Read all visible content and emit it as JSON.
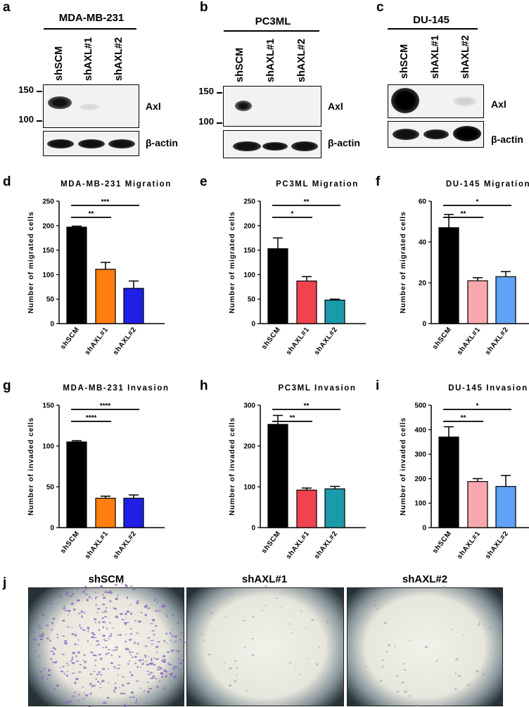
{
  "western_blots": [
    {
      "letter": "a",
      "title": "MDA-MB-231",
      "lanes": [
        "shSCM",
        "shAXL#1",
        "shAXL#2"
      ],
      "mw_markers": [
        "150",
        "100"
      ],
      "proteins": [
        "Axl",
        "β-actin"
      ]
    },
    {
      "letter": "b",
      "title": "PC3ML",
      "lanes": [
        "shSCM",
        "shAXL#1",
        "shAXL#2"
      ],
      "mw_markers": [
        "150",
        "100"
      ],
      "proteins": [
        "Axl",
        "β-actin"
      ]
    },
    {
      "letter": "c",
      "title": "DU-145",
      "lanes": [
        "shSCM",
        "shAXL#1",
        "shAXL#2"
      ],
      "mw_markers": [],
      "proteins": [
        "Axl",
        "β-actin"
      ]
    }
  ],
  "chart_data": [
    {
      "letter": "d",
      "type": "bar",
      "title": "MDA-MB-231 Migration",
      "ylabel": "Number of migrated cells",
      "categories": [
        "shSCM",
        "shAXL#1",
        "shAXL#2"
      ],
      "values": [
        197,
        111,
        72
      ],
      "errors": [
        2,
        14,
        15
      ],
      "colors": [
        "#000000",
        "#ff7f0e",
        "#1f1fe6"
      ],
      "ylim": [
        0,
        250
      ],
      "yticks": [
        0,
        50,
        100,
        150,
        200,
        250
      ],
      "significance": [
        {
          "from": 0,
          "to": 1,
          "label": "**"
        },
        {
          "from": 0,
          "to": 2,
          "label": "***"
        }
      ]
    },
    {
      "letter": "e",
      "type": "bar",
      "title": "PC3ML Migration",
      "ylabel": "Number of migrated cells",
      "categories": [
        "shSCM",
        "shAXL#1",
        "shAXL#2"
      ],
      "values": [
        153,
        87,
        48
      ],
      "errors": [
        22,
        9,
        2
      ],
      "colors": [
        "#000000",
        "#f0434f",
        "#1b9aaa"
      ],
      "ylim": [
        0,
        250
      ],
      "yticks": [
        0,
        50,
        100,
        150,
        200,
        250
      ],
      "significance": [
        {
          "from": 0,
          "to": 1,
          "label": "*"
        },
        {
          "from": 0,
          "to": 2,
          "label": "**"
        }
      ]
    },
    {
      "letter": "f",
      "type": "bar",
      "title": "DU-145 Migration",
      "ylabel": "Number of migrated cells",
      "categories": [
        "shSCM",
        "shAXL#1",
        "shAXL#2"
      ],
      "values": [
        47,
        21,
        23
      ],
      "errors": [
        6.5,
        1.5,
        2.5
      ],
      "colors": [
        "#000000",
        "#f7a8ad",
        "#5ea3f5"
      ],
      "ylim": [
        0,
        60
      ],
      "yticks": [
        0,
        20,
        40,
        60
      ],
      "significance": [
        {
          "from": 0,
          "to": 1,
          "label": "**"
        },
        {
          "from": 0,
          "to": 2,
          "label": "*"
        }
      ]
    },
    {
      "letter": "g",
      "type": "bar",
      "title": "MDA-MB-231 Invasion",
      "ylabel": "Number of invaded cells",
      "categories": [
        "shSCM",
        "shAXL#1",
        "shAXL#2"
      ],
      "values": [
        105,
        36,
        36
      ],
      "errors": [
        1.5,
        2.5,
        4
      ],
      "colors": [
        "#000000",
        "#ff7f0e",
        "#1f1fe6"
      ],
      "ylim": [
        0,
        150
      ],
      "yticks": [
        0,
        50,
        100,
        150
      ],
      "significance": [
        {
          "from": 0,
          "to": 1,
          "label": "****"
        },
        {
          "from": 0,
          "to": 2,
          "label": "****"
        }
      ]
    },
    {
      "letter": "h",
      "type": "bar",
      "title": "PC3ML Invasion",
      "ylabel": "Number of invaded cells",
      "categories": [
        "shSCM",
        "shAXL#1",
        "shAXL#2"
      ],
      "values": [
        253,
        92,
        95
      ],
      "errors": [
        22,
        5,
        6
      ],
      "colors": [
        "#000000",
        "#f0434f",
        "#1b9aaa"
      ],
      "ylim": [
        0,
        300
      ],
      "yticks": [
        0,
        100,
        200,
        300
      ],
      "significance": [
        {
          "from": 0,
          "to": 1,
          "label": "**"
        },
        {
          "from": 0,
          "to": 2,
          "label": "**"
        }
      ]
    },
    {
      "letter": "i",
      "type": "bar",
      "title": "DU-145 Invasion",
      "ylabel": "Number of invaded cells",
      "categories": [
        "shSCM",
        "shAXL#1",
        "shAXL#2"
      ],
      "values": [
        370,
        188,
        168
      ],
      "errors": [
        42,
        12,
        45
      ],
      "colors": [
        "#000000",
        "#f7a8ad",
        "#5ea3f5"
      ],
      "ylim": [
        0,
        500
      ],
      "yticks": [
        0,
        100,
        200,
        300,
        400,
        500
      ],
      "significance": [
        {
          "from": 0,
          "to": 1,
          "label": "**"
        },
        {
          "from": 0,
          "to": 2,
          "label": "*"
        }
      ]
    }
  ],
  "micrographs": {
    "letter": "j",
    "titles": [
      "shSCM",
      "shAXL#1",
      "shAXL#2"
    ],
    "cell_density": [
      "high",
      "low",
      "low"
    ]
  }
}
